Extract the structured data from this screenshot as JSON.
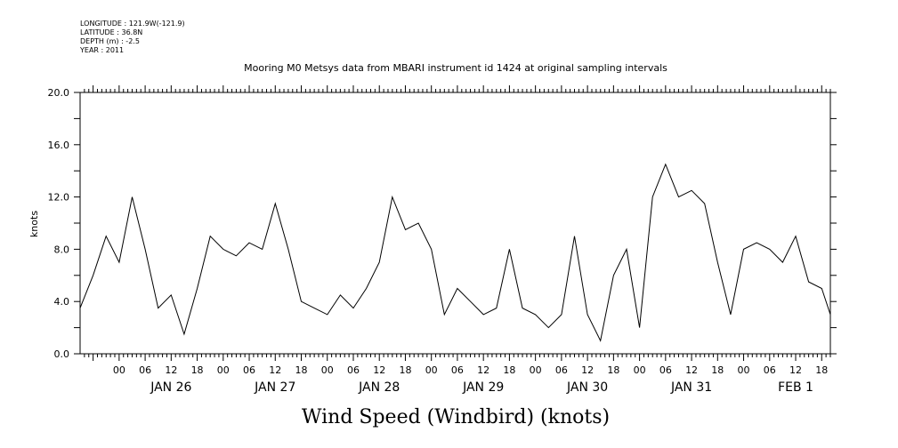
{
  "header": {
    "longitude": "LONGITUDE : 121.9W(-121.9)",
    "latitude": "LATITUDE : 36.8N",
    "depth": "DEPTH (m) : -2.5",
    "year": "YEAR : 2011"
  },
  "chart_data": {
    "type": "line",
    "title": "Mooring M0 Metsys data from MBARI instrument id 1424 at original sampling intervals",
    "xlabel": "Wind Speed (Windbird) (knots)",
    "ylabel": "knots",
    "ylim": [
      0,
      20
    ],
    "yticks": [
      "0.0",
      "4.0",
      "8.0",
      "12.0",
      "16.0",
      "20.0"
    ],
    "xlim": [
      "2011-01-25T15:00",
      "2011-02-01T20:00"
    ],
    "hour_tick_labels": [
      "00",
      "06",
      "12",
      "18",
      "00",
      "06",
      "12",
      "18",
      "00",
      "06",
      "12",
      "18",
      "00",
      "06",
      "12",
      "18",
      "00",
      "06",
      "12",
      "18",
      "00",
      "06",
      "12",
      "18",
      "00",
      "06",
      "12",
      "18"
    ],
    "day_labels": [
      "JAN 26",
      "JAN 27",
      "JAN 28",
      "JAN 29",
      "JAN 30",
      "JAN 31",
      "FEB 1"
    ],
    "grid": false,
    "series": [
      {
        "points": [
          [
            "2011-01-25T15:00",
            3.5
          ],
          [
            "2011-01-25T18:00",
            6.0
          ],
          [
            "2011-01-25T21:00",
            9.0
          ],
          [
            "2011-01-26T00:00",
            7.0
          ],
          [
            "2011-01-26T03:00",
            12.0
          ],
          [
            "2011-01-26T06:00",
            8.0
          ],
          [
            "2011-01-26T09:00",
            3.5
          ],
          [
            "2011-01-26T12:00",
            4.5
          ],
          [
            "2011-01-26T15:00",
            1.5
          ],
          [
            "2011-01-26T18:00",
            5.0
          ],
          [
            "2011-01-26T21:00",
            9.0
          ],
          [
            "2011-01-27T00:00",
            8.0
          ],
          [
            "2011-01-27T03:00",
            7.5
          ],
          [
            "2011-01-27T06:00",
            8.5
          ],
          [
            "2011-01-27T09:00",
            8.0
          ],
          [
            "2011-01-27T12:00",
            11.5
          ],
          [
            "2011-01-27T15:00",
            8.0
          ],
          [
            "2011-01-27T18:00",
            4.0
          ],
          [
            "2011-01-27T21:00",
            3.5
          ],
          [
            "2011-01-28T00:00",
            3.0
          ],
          [
            "2011-01-28T03:00",
            4.5
          ],
          [
            "2011-01-28T06:00",
            3.5
          ],
          [
            "2011-01-28T09:00",
            5.0
          ],
          [
            "2011-01-28T12:00",
            7.0
          ],
          [
            "2011-01-28T15:00",
            12.0
          ],
          [
            "2011-01-28T18:00",
            9.5
          ],
          [
            "2011-01-28T21:00",
            10.0
          ],
          [
            "2011-01-29T00:00",
            8.0
          ],
          [
            "2011-01-29T03:00",
            3.0
          ],
          [
            "2011-01-29T06:00",
            5.0
          ],
          [
            "2011-01-29T09:00",
            4.0
          ],
          [
            "2011-01-29T12:00",
            3.0
          ],
          [
            "2011-01-29T15:00",
            3.5
          ],
          [
            "2011-01-29T18:00",
            8.0
          ],
          [
            "2011-01-29T21:00",
            3.5
          ],
          [
            "2011-01-30T00:00",
            3.0
          ],
          [
            "2011-01-30T03:00",
            2.0
          ],
          [
            "2011-01-30T06:00",
            3.0
          ],
          [
            "2011-01-30T09:00",
            9.0
          ],
          [
            "2011-01-30T12:00",
            3.0
          ],
          [
            "2011-01-30T15:00",
            1.0
          ],
          [
            "2011-01-30T18:00",
            6.0
          ],
          [
            "2011-01-30T21:00",
            8.0
          ],
          [
            "2011-01-31T00:00",
            2.0
          ],
          [
            "2011-01-31T03:00",
            12.0
          ],
          [
            "2011-01-31T06:00",
            14.5
          ],
          [
            "2011-01-31T09:00",
            12.0
          ],
          [
            "2011-01-31T12:00",
            12.5
          ],
          [
            "2011-01-31T15:00",
            11.5
          ],
          [
            "2011-01-31T18:00",
            7.0
          ],
          [
            "2011-01-31T21:00",
            3.0
          ],
          [
            "2011-02-01T00:00",
            8.0
          ],
          [
            "2011-02-01T03:00",
            8.5
          ],
          [
            "2011-02-01T06:00",
            8.0
          ],
          [
            "2011-02-01T09:00",
            7.0
          ],
          [
            "2011-02-01T12:00",
            9.0
          ],
          [
            "2011-02-01T15:00",
            5.5
          ],
          [
            "2011-02-01T18:00",
            5.0
          ],
          [
            "2011-02-01T20:00",
            3.0
          ]
        ]
      }
    ]
  }
}
